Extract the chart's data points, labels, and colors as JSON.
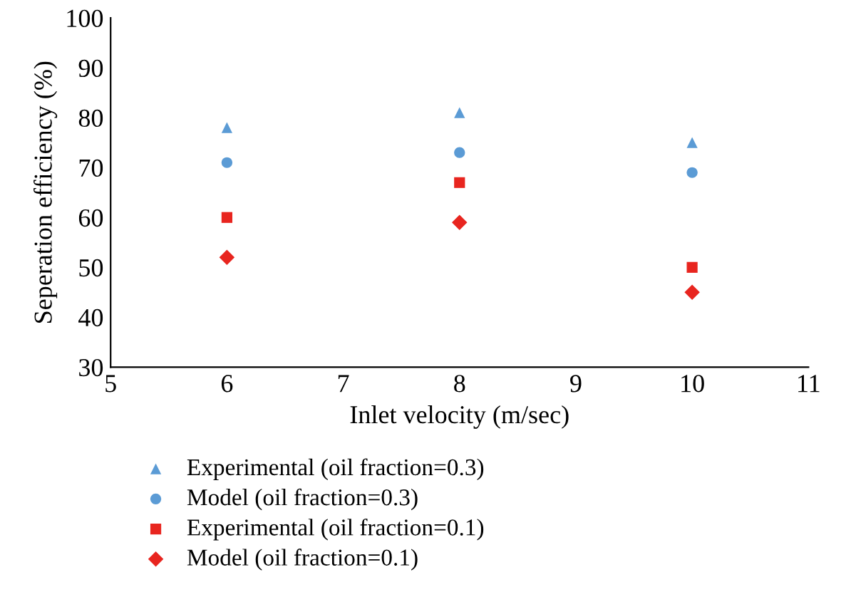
{
  "chart_data": {
    "type": "scatter",
    "xlabel": "Inlet velocity (m/sec)",
    "ylabel": "Seperation efficiency (%)",
    "x": [
      6,
      8,
      10
    ],
    "series": [
      {
        "name": "Experimental (oil fraction=0.3)",
        "color": "#5b9bd5",
        "marker": "triangle",
        "values": [
          78,
          81,
          75
        ]
      },
      {
        "name": "Model (oil fraction=0.3)",
        "color": "#5b9bd5",
        "marker": "circle",
        "values": [
          71,
          73,
          69
        ]
      },
      {
        "name": "Experimental (oil fraction=0.1)",
        "color": "#e8251f",
        "marker": "square",
        "values": [
          60,
          67,
          50
        ]
      },
      {
        "name": "Model (oil fraction=0.1)",
        "color": "#e8251f",
        "marker": "diamond",
        "values": [
          52,
          59,
          45
        ]
      }
    ],
    "xlim": [
      5,
      11
    ],
    "xticks": [
      5,
      6,
      7,
      8,
      9,
      10,
      11
    ],
    "ylim": [
      30,
      100
    ],
    "yticks": [
      30,
      40,
      50,
      60,
      70,
      80,
      90,
      100
    ],
    "grid": false,
    "legend": "bottom"
  }
}
